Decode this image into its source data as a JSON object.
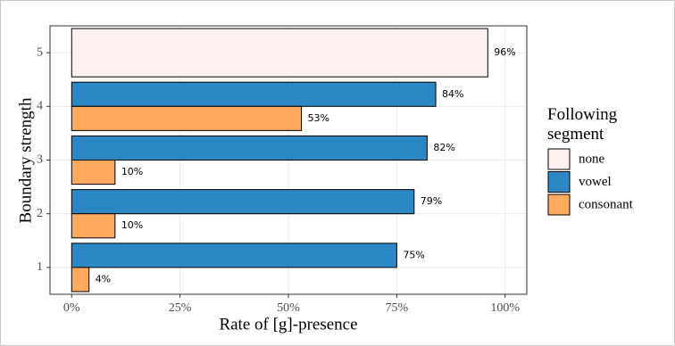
{
  "chart_data": {
    "type": "bar",
    "orientation": "horizontal",
    "x_label": "Rate of [g]-presence",
    "y_label": "Boundary strength",
    "legend_title": "Following segment",
    "legend_position": "right",
    "categories": [
      "1",
      "2",
      "3",
      "4",
      "5"
    ],
    "series": [
      {
        "name": "none",
        "color": "#fff0f0",
        "values": [
          null,
          null,
          null,
          null,
          96
        ],
        "value_labels": [
          null,
          null,
          null,
          null,
          "96%"
        ]
      },
      {
        "name": "vowel",
        "color": "#2b88c4",
        "values": [
          75,
          79,
          82,
          84,
          null
        ],
        "value_labels": [
          "75%",
          "79%",
          "82%",
          "84%",
          null
        ]
      },
      {
        "name": "consonant",
        "color": "#ffaa5f",
        "values": [
          4,
          10,
          10,
          53,
          null
        ],
        "value_labels": [
          "4%",
          "10%",
          "10%",
          "53%",
          null
        ]
      }
    ],
    "xlim": [
      -5,
      105
    ],
    "xticks": [
      {
        "value": 0,
        "label": "0%"
      },
      {
        "value": 25,
        "label": "25%"
      },
      {
        "value": 50,
        "label": "50%"
      },
      {
        "value": 75,
        "label": "75%"
      },
      {
        "value": 100,
        "label": "100%"
      }
    ],
    "grid": true
  }
}
